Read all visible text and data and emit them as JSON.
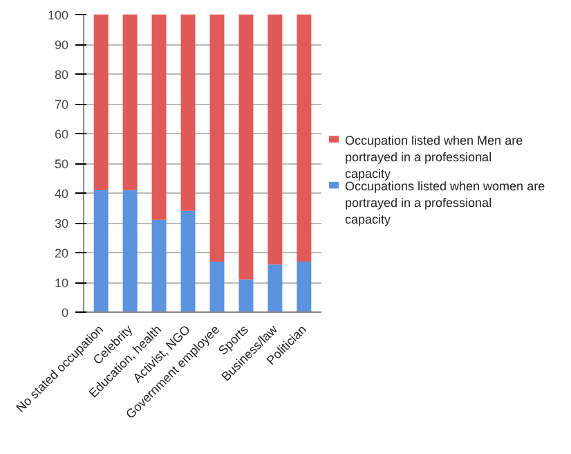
{
  "chart_data": {
    "type": "bar",
    "stacked": true,
    "categories": [
      "No stated occupation",
      "Celebrity",
      "Education, health",
      "Activist, NGO",
      "Government employee",
      "Sports",
      "Business/law",
      "Politician"
    ],
    "series": [
      {
        "name": "Occupations listed when women are portrayed in a professional capacity",
        "color": "#5b93de",
        "values": [
          41,
          41,
          31,
          34,
          17,
          11,
          16,
          17
        ]
      },
      {
        "name": "Occupation listed when Men are portrayed in a professional capacity",
        "color": "#e05a5a",
        "values": [
          59,
          59,
          69,
          66,
          83,
          89,
          84,
          83
        ]
      }
    ],
    "ylim": [
      0,
      100
    ],
    "yticks": [
      0,
      10,
      20,
      30,
      40,
      50,
      60,
      70,
      80,
      90,
      100
    ],
    "grid": "y",
    "legend": "right"
  }
}
